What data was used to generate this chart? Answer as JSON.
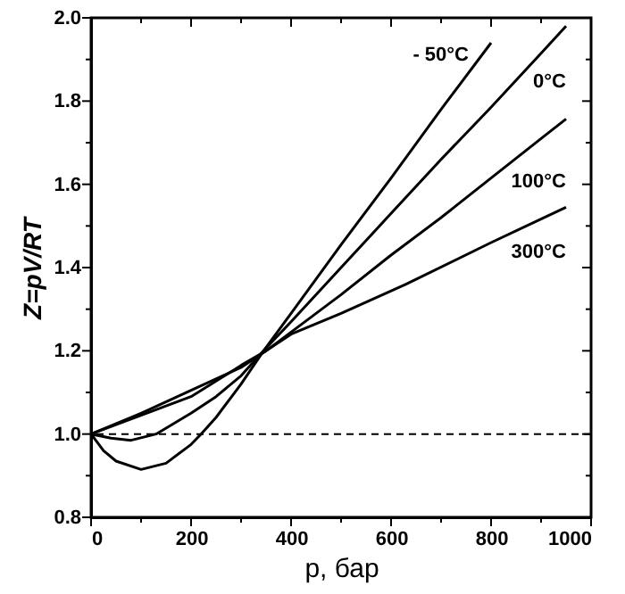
{
  "chart_data": {
    "type": "line",
    "xlabel": "p, бар",
    "ylabel": "Z=pV/RT",
    "xlim": [
      0,
      1000
    ],
    "ylim": [
      0.8,
      2.0
    ],
    "xticks": [
      0,
      {
        "value": 100,
        "label": null
      },
      200,
      {
        "value": 300,
        "label": null
      },
      400,
      {
        "value": 500,
        "label": null
      },
      600,
      {
        "value": 700,
        "label": null
      },
      800,
      {
        "value": 900,
        "label": null
      },
      1000
    ],
    "yticks": [
      0.8,
      {
        "value": 0.9,
        "label": null
      },
      {
        "value": 1.0,
        "label": "1.0"
      },
      {
        "value": 1.1,
        "label": null
      },
      1.2,
      {
        "value": 1.3,
        "label": null
      },
      1.4,
      {
        "value": 1.5,
        "label": null
      },
      1.6,
      {
        "value": 1.7,
        "label": null
      },
      1.8,
      {
        "value": 1.9,
        "label": null
      },
      {
        "value": 2.0,
        "label": "2.0"
      }
    ],
    "grid": false,
    "marker": "none",
    "line_style": "solid",
    "ref_lines": [
      {
        "axis": "y",
        "value": 1.0,
        "label": null,
        "color": "#000000",
        "line_style": "dashed"
      }
    ],
    "series": [
      {
        "name": "- 50°C",
        "color": "#000000",
        "x": [
          0,
          25,
          50,
          100,
          150,
          200,
          220,
          250,
          300,
          345,
          400,
          500,
          600,
          700,
          800
        ],
        "values": [
          1.0,
          0.96,
          0.935,
          0.915,
          0.93,
          0.975,
          1.0,
          1.04,
          1.12,
          1.2,
          1.29,
          1.455,
          1.615,
          1.78,
          1.94
        ]
      },
      {
        "name": "0°C",
        "color": "#000000",
        "x": [
          0,
          40,
          80,
          130,
          200,
          250,
          300,
          345,
          400,
          500,
          600,
          700,
          800,
          900,
          950
        ],
        "values": [
          1.0,
          0.99,
          0.985,
          1.0,
          1.05,
          1.09,
          1.14,
          1.2,
          1.27,
          1.4,
          1.53,
          1.66,
          1.785,
          1.915,
          1.98
        ]
      },
      {
        "name": "100°C",
        "color": "#000000",
        "x": [
          0,
          100,
          200,
          300,
          350,
          400,
          500,
          600,
          700,
          800,
          900,
          950
        ],
        "values": [
          1.0,
          1.05,
          1.105,
          1.16,
          1.2,
          1.245,
          1.335,
          1.43,
          1.52,
          1.615,
          1.71,
          1.757
        ]
      },
      {
        "name": "300°C",
        "color": "#000000",
        "x": [
          0,
          100,
          200,
          300,
          350,
          400,
          500,
          630,
          800,
          950
        ],
        "values": [
          1.0,
          1.045,
          1.09,
          1.165,
          1.2,
          1.24,
          1.29,
          1.36,
          1.46,
          1.545
        ]
      }
    ]
  }
}
